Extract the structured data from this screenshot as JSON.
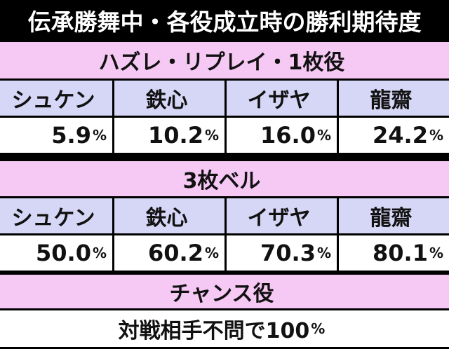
{
  "title": "伝承勝舞中・各役成立時の勝利期待度",
  "sections": [
    {
      "header": "ハズレ・リプレイ・1枚役",
      "names": [
        "シュケン",
        "鉄心",
        "イザヤ",
        "龍齋"
      ],
      "values": [
        {
          "value": "5.9",
          "unit": "%"
        },
        {
          "value": "10.2",
          "unit": "%"
        },
        {
          "value": "16.0",
          "unit": "%"
        },
        {
          "value": "24.2",
          "unit": "%"
        }
      ]
    },
    {
      "header": "3枚ベル",
      "names": [
        "シュケン",
        "鉄心",
        "イザヤ",
        "龍齋"
      ],
      "values": [
        {
          "value": "50.0",
          "unit": "%"
        },
        {
          "value": "60.2",
          "unit": "%"
        },
        {
          "value": "70.3",
          "unit": "%"
        },
        {
          "value": "80.1",
          "unit": "%"
        }
      ]
    },
    {
      "header": "チャンス役",
      "note": {
        "value": "対戦相手不問で100",
        "unit": "%"
      }
    }
  ]
}
